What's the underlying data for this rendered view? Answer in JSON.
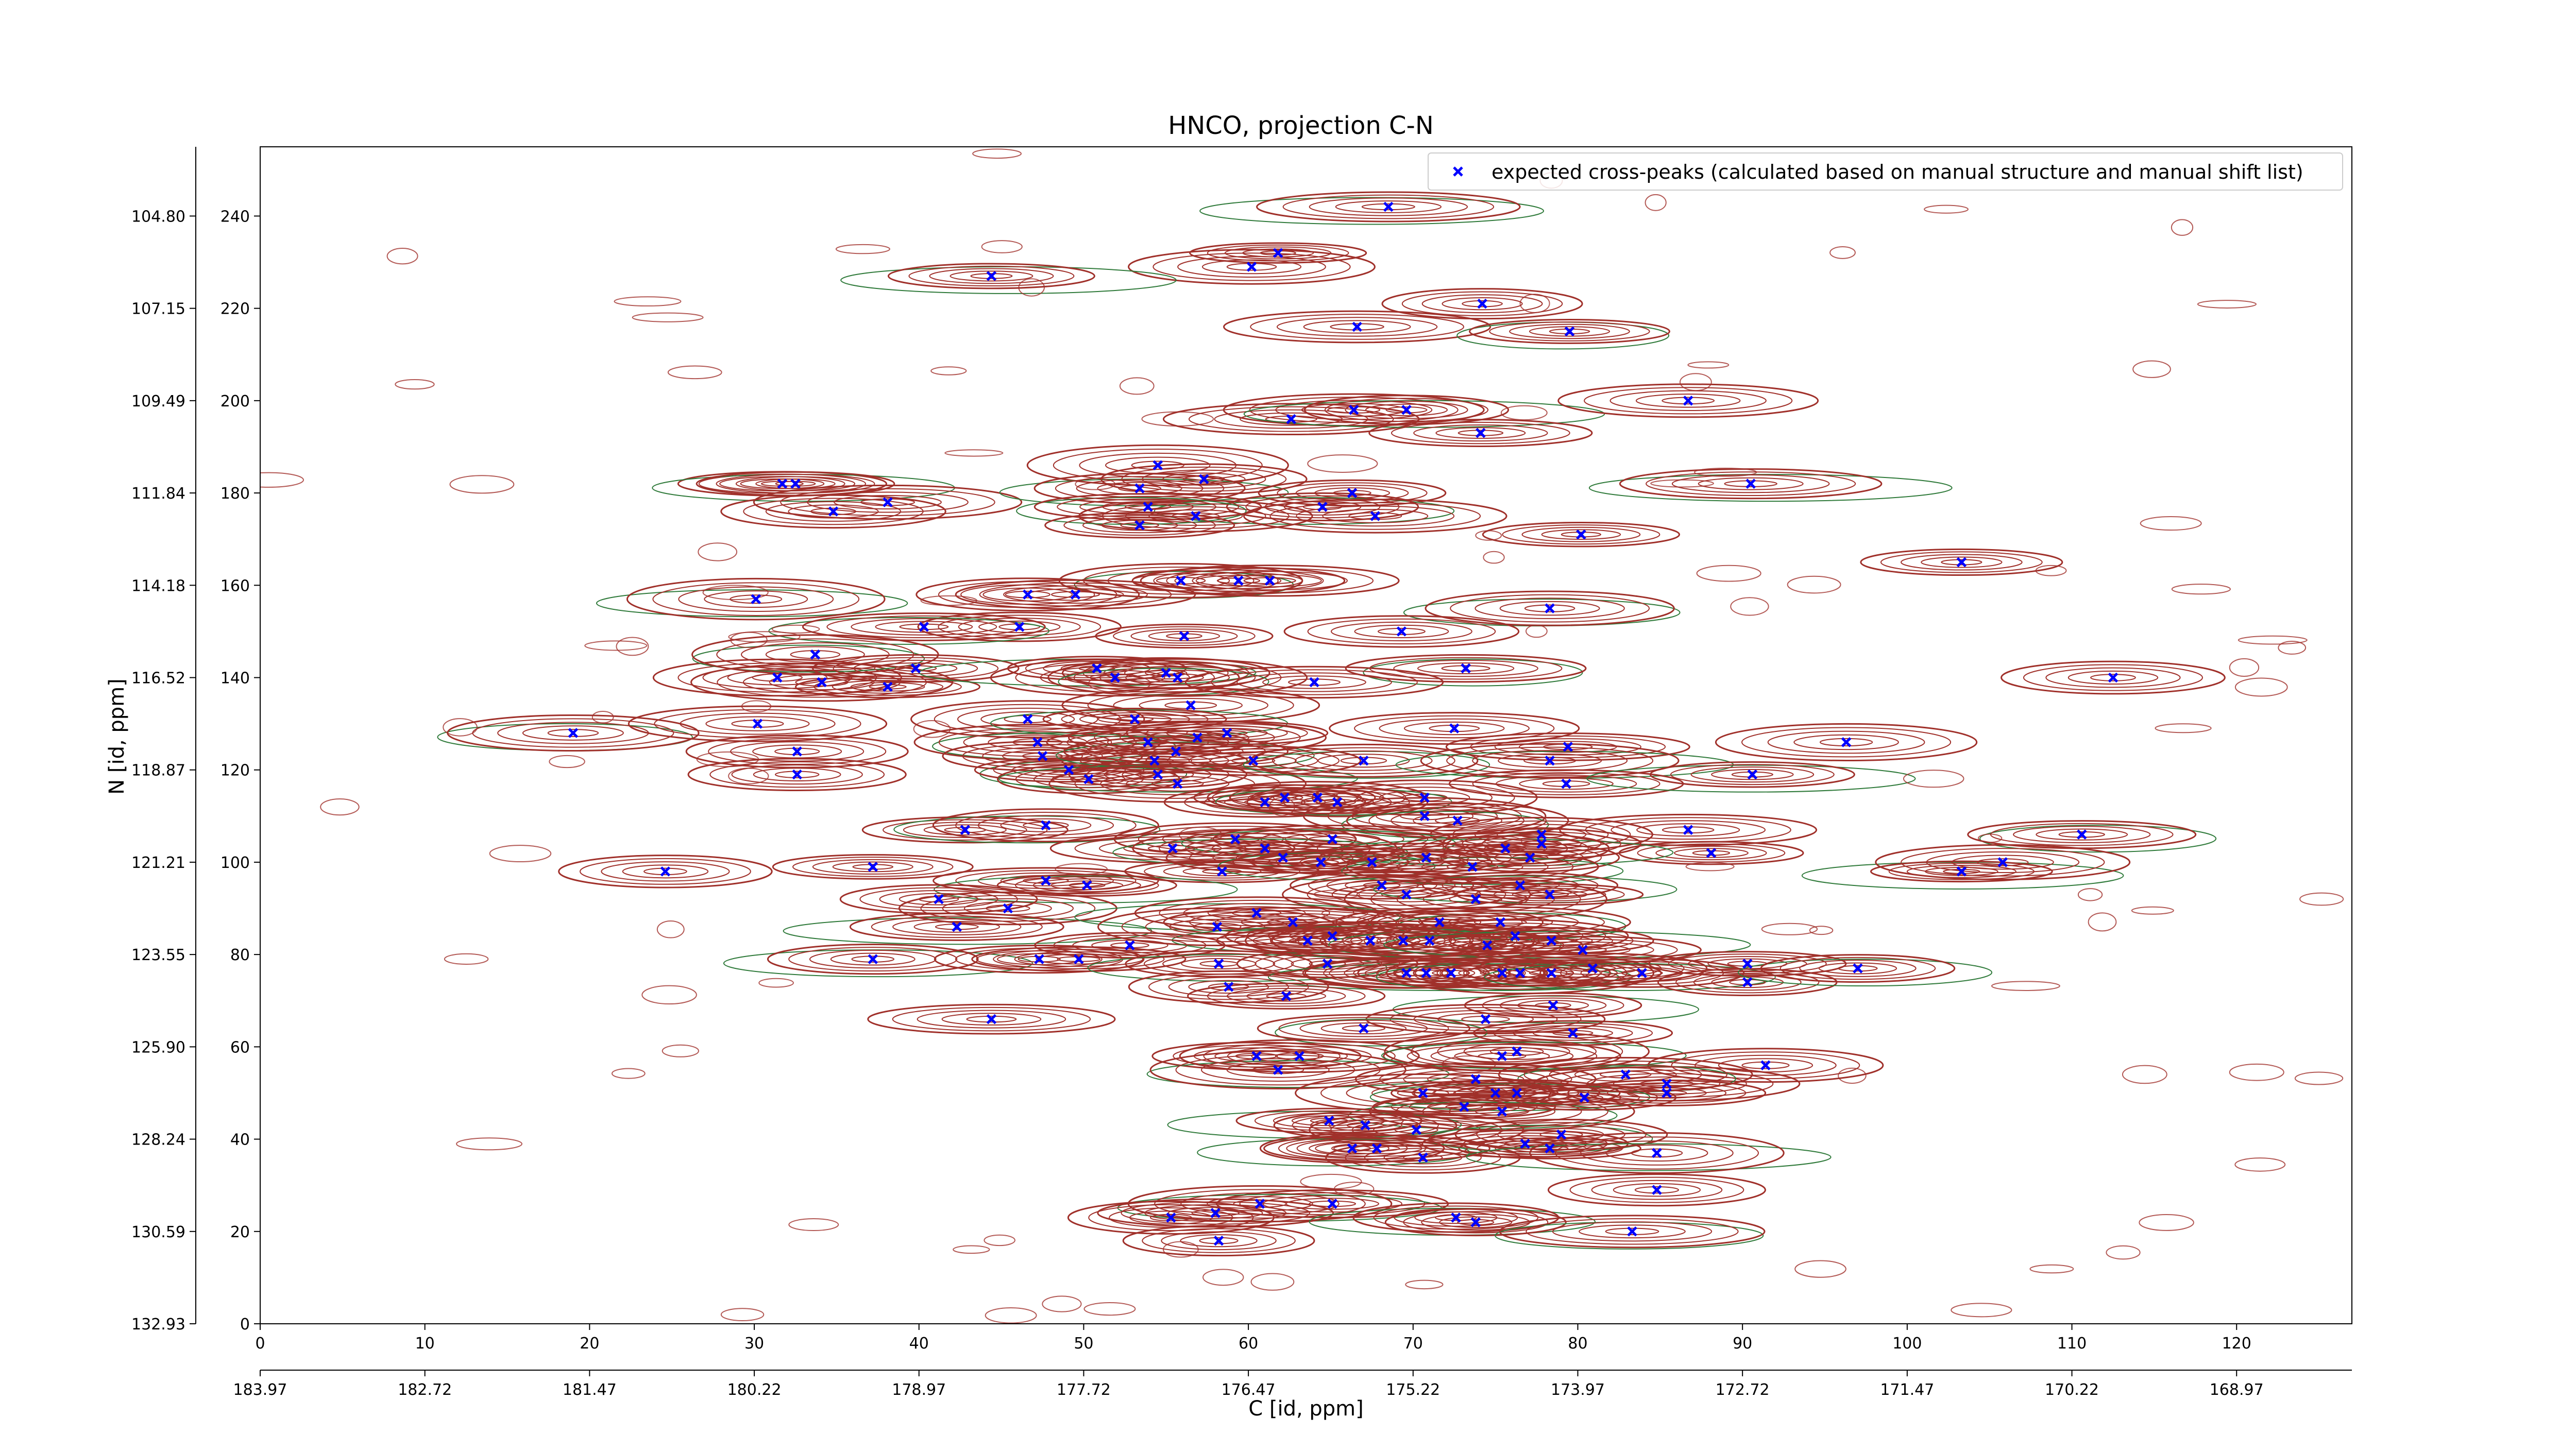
{
  "chart_data": {
    "type": "scatter",
    "title": "HNCO, projection C-N",
    "xlabel": "C [id, ppm]",
    "ylabel": "N [id, ppm]",
    "xlim": [
      0,
      127
    ],
    "ylim": [
      0,
      255
    ],
    "x_ticks": [
      0,
      10,
      20,
      30,
      40,
      50,
      60,
      70,
      80,
      90,
      100,
      110,
      120
    ],
    "x_ppm_ticks": [
      "183.97",
      "182.72",
      "181.47",
      "180.22",
      "178.97",
      "177.72",
      "176.47",
      "175.22",
      "173.97",
      "172.72",
      "171.47",
      "170.22",
      "168.97"
    ],
    "y_ticks": [
      0,
      20,
      40,
      60,
      80,
      100,
      120,
      140,
      160,
      180,
      200,
      220,
      240
    ],
    "y_ppm_ticks": [
      "132.93",
      "130.59",
      "128.24",
      "125.90",
      "123.55",
      "121.21",
      "118.87",
      "116.52",
      "114.18",
      "111.84",
      "109.49",
      "107.15",
      "104.80"
    ],
    "grid": false,
    "legend_position": "top-right",
    "contour_colors": {
      "positive": "#a0302a",
      "negative": "#2f7a3a"
    },
    "series": [
      {
        "name": "expected cross-peaks (calculated based on manual structure and manual shift list)",
        "color": "#0000ff",
        "marker": "x",
        "points": [
          [
            68.5,
            242
          ],
          [
            61.8,
            232
          ],
          [
            60.2,
            229
          ],
          [
            44.4,
            227
          ],
          [
            74.2,
            221
          ],
          [
            66.6,
            216
          ],
          [
            79.5,
            215
          ],
          [
            62.6,
            196
          ],
          [
            66.4,
            198
          ],
          [
            69.6,
            198
          ],
          [
            74.1,
            193
          ],
          [
            86.7,
            200
          ],
          [
            90.5,
            182
          ],
          [
            54.5,
            186
          ],
          [
            31.7,
            182
          ],
          [
            32.5,
            182
          ],
          [
            38.1,
            178
          ],
          [
            34.8,
            176
          ],
          [
            53.4,
            181
          ],
          [
            57.3,
            183
          ],
          [
            66.3,
            180
          ],
          [
            64.5,
            177
          ],
          [
            67.7,
            175
          ],
          [
            56.8,
            175
          ],
          [
            53.9,
            177
          ],
          [
            53.4,
            173
          ],
          [
            80.2,
            171
          ],
          [
            55.9,
            161
          ],
          [
            59.4,
            161
          ],
          [
            61.3,
            161
          ],
          [
            30.1,
            157
          ],
          [
            46.6,
            158
          ],
          [
            49.5,
            158
          ],
          [
            78.3,
            155
          ],
          [
            103.3,
            165
          ],
          [
            46.1,
            151
          ],
          [
            40.3,
            151
          ],
          [
            56.1,
            149
          ],
          [
            69.3,
            150
          ],
          [
            73.2,
            142
          ],
          [
            31.4,
            140
          ],
          [
            34.1,
            139
          ],
          [
            33.7,
            145
          ],
          [
            39.8,
            142
          ],
          [
            38.1,
            138
          ],
          [
            50.8,
            142
          ],
          [
            51.9,
            140
          ],
          [
            55.0,
            141
          ],
          [
            55.7,
            140
          ],
          [
            64.0,
            139
          ],
          [
            56.5,
            134
          ],
          [
            19.0,
            128
          ],
          [
            30.2,
            130
          ],
          [
            46.6,
            131
          ],
          [
            47.2,
            126
          ],
          [
            32.6,
            124
          ],
          [
            32.6,
            119
          ],
          [
            49.1,
            120
          ],
          [
            47.5,
            123
          ],
          [
            50.3,
            118
          ],
          [
            53.1,
            131
          ],
          [
            53.9,
            126
          ],
          [
            54.3,
            122
          ],
          [
            55.6,
            124
          ],
          [
            56.9,
            127
          ],
          [
            58.7,
            128
          ],
          [
            54.5,
            119
          ],
          [
            55.7,
            117
          ],
          [
            60.3,
            122
          ],
          [
            67.0,
            122
          ],
          [
            72.5,
            129
          ],
          [
            79.4,
            125
          ],
          [
            78.3,
            122
          ],
          [
            79.3,
            117
          ],
          [
            70.7,
            114
          ],
          [
            90.6,
            119
          ],
          [
            96.3,
            126
          ],
          [
            112.5,
            140
          ],
          [
            110.6,
            106
          ],
          [
            61.0,
            113
          ],
          [
            62.2,
            114
          ],
          [
            64.2,
            114
          ],
          [
            65.4,
            113
          ],
          [
            70.7,
            110
          ],
          [
            72.7,
            109
          ],
          [
            77.8,
            106
          ],
          [
            42.8,
            107
          ],
          [
            47.7,
            108
          ],
          [
            55.4,
            103
          ],
          [
            59.2,
            105
          ],
          [
            65.1,
            105
          ],
          [
            86.7,
            107
          ],
          [
            88.1,
            102
          ],
          [
            75.6,
            103
          ],
          [
            77.1,
            101
          ],
          [
            77.8,
            104
          ],
          [
            61.0,
            103
          ],
          [
            62.1,
            101
          ],
          [
            58.4,
            98
          ],
          [
            64.4,
            100
          ],
          [
            67.5,
            100
          ],
          [
            70.8,
            101
          ],
          [
            73.6,
            99
          ],
          [
            24.6,
            98
          ],
          [
            37.2,
            99
          ],
          [
            103.3,
            98
          ],
          [
            105.8,
            100
          ],
          [
            47.7,
            96
          ],
          [
            50.2,
            95
          ],
          [
            68.1,
            95
          ],
          [
            69.6,
            93
          ],
          [
            76.5,
            95
          ],
          [
            78.3,
            93
          ],
          [
            41.2,
            92
          ],
          [
            42.3,
            86
          ],
          [
            45.4,
            90
          ],
          [
            73.8,
            92
          ],
          [
            60.5,
            89
          ],
          [
            62.7,
            87
          ],
          [
            71.6,
            87
          ],
          [
            75.3,
            87
          ],
          [
            58.1,
            86
          ],
          [
            63.6,
            83
          ],
          [
            65.1,
            84
          ],
          [
            67.4,
            83
          ],
          [
            69.4,
            83
          ],
          [
            71.0,
            83
          ],
          [
            74.5,
            82
          ],
          [
            76.2,
            84
          ],
          [
            78.4,
            83
          ],
          [
            80.3,
            81
          ],
          [
            52.8,
            82
          ],
          [
            37.2,
            79
          ],
          [
            47.3,
            79
          ],
          [
            49.7,
            79
          ],
          [
            58.2,
            78
          ],
          [
            64.8,
            78
          ],
          [
            69.6,
            76
          ],
          [
            70.8,
            76
          ],
          [
            72.3,
            76
          ],
          [
            75.4,
            76
          ],
          [
            76.5,
            76
          ],
          [
            78.4,
            76
          ],
          [
            80.9,
            77
          ],
          [
            83.9,
            76
          ],
          [
            90.3,
            78
          ],
          [
            90.3,
            74
          ],
          [
            97.0,
            77
          ],
          [
            58.8,
            73
          ],
          [
            62.3,
            71
          ],
          [
            78.5,
            69
          ],
          [
            44.4,
            66
          ],
          [
            74.4,
            66
          ],
          [
            67.0,
            64
          ],
          [
            79.7,
            63
          ],
          [
            60.5,
            58
          ],
          [
            61.8,
            55
          ],
          [
            63.1,
            58
          ],
          [
            75.4,
            58
          ],
          [
            76.3,
            59
          ],
          [
            91.4,
            56
          ],
          [
            85.4,
            52
          ],
          [
            82.9,
            54
          ],
          [
            73.8,
            53
          ],
          [
            70.6,
            50
          ],
          [
            75.0,
            50
          ],
          [
            76.3,
            50
          ],
          [
            73.1,
            47
          ],
          [
            75.4,
            46
          ],
          [
            80.4,
            49
          ],
          [
            85.4,
            50
          ],
          [
            64.9,
            44
          ],
          [
            67.1,
            43
          ],
          [
            70.2,
            42
          ],
          [
            79.0,
            41
          ],
          [
            78.3,
            38
          ],
          [
            76.8,
            39
          ],
          [
            66.3,
            38
          ],
          [
            67.8,
            38
          ],
          [
            70.6,
            36
          ],
          [
            84.8,
            37
          ],
          [
            84.8,
            29
          ],
          [
            65.1,
            26
          ],
          [
            60.7,
            26
          ],
          [
            58.0,
            24
          ],
          [
            55.3,
            23
          ],
          [
            72.6,
            23
          ],
          [
            73.8,
            22
          ],
          [
            58.2,
            18
          ],
          [
            83.3,
            20
          ]
        ]
      }
    ]
  }
}
